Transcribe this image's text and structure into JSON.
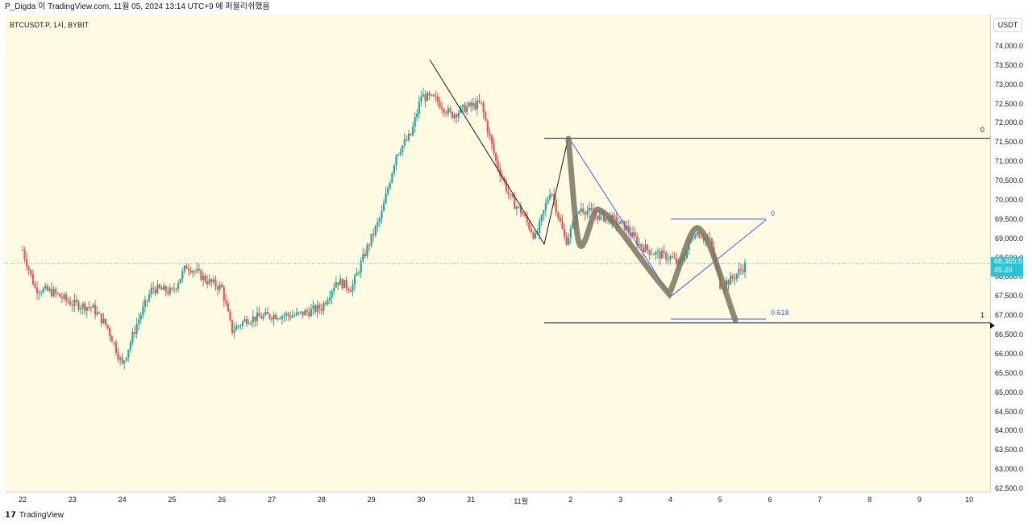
{
  "header": {
    "title": "P_Digda 이 TradingView.com, 11월 05, 2024 13:14 UTC+9 에 퍼블리쉬했음"
  },
  "symbol": {
    "label": "BTCUSDT.P, 1시, BYBIT"
  },
  "price_axis": {
    "currency": "USDT"
  },
  "footer": {
    "brand": "TradingView"
  },
  "last_price": {
    "value": "68,365.5",
    "countdown": "45:20"
  },
  "fib": {
    "label_top_right": "0",
    "label_bottom_right": "1",
    "label_inner_top": "0",
    "label_inner_mid": "0.618"
  },
  "colors": {
    "up": "#26a69a",
    "down": "#ef5350",
    "background": "#fffbe3",
    "fib_line": "#131722",
    "blue_line": "#2962ff",
    "highlight": "#7a7462"
  },
  "chart_data": {
    "type": "candlestick",
    "symbol": "BTCUSDT.P",
    "interval": "1시",
    "exchange": "BYBIT",
    "ylim": [
      62500,
      74500
    ],
    "y_ticks": [
      "74,000.0",
      "73,500.0",
      "73,000.0",
      "72,500.0",
      "72,000.0",
      "71,500.0",
      "71,000.0",
      "70,500.0",
      "70,000.0",
      "69,500.0",
      "69,000.0",
      "68,500.0",
      "68,000.0",
      "67,500.0",
      "67,000.0",
      "66,500.0",
      "66,000.0",
      "65,500.0",
      "65,000.0",
      "64,500.0",
      "64,000.0",
      "63,500.0",
      "63,000.0",
      "62,500.0"
    ],
    "x_ticks": [
      "22",
      "23",
      "24",
      "25",
      "26",
      "27",
      "28",
      "29",
      "30",
      "31",
      "11월",
      "2",
      "3",
      "4",
      "5",
      "6",
      "7",
      "8",
      "9",
      "10"
    ],
    "x_tick_values": [
      0,
      1,
      2,
      3,
      4,
      5,
      6,
      7,
      8,
      9,
      10,
      11,
      12,
      13,
      14,
      15,
      16,
      17,
      18,
      19
    ],
    "price_path": [
      [
        0,
        68700
      ],
      [
        0.25,
        67700
      ],
      [
        0.6,
        67600
      ],
      [
        1.0,
        67300
      ],
      [
        1.4,
        67200
      ],
      [
        1.7,
        66700
      ],
      [
        2.0,
        65700
      ],
      [
        2.3,
        66800
      ],
      [
        2.6,
        67700
      ],
      [
        3.0,
        67600
      ],
      [
        3.3,
        68300
      ],
      [
        3.7,
        67900
      ],
      [
        4.0,
        67700
      ],
      [
        4.2,
        66600
      ],
      [
        4.5,
        66900
      ],
      [
        5.0,
        67000
      ],
      [
        5.5,
        67000
      ],
      [
        6.0,
        67200
      ],
      [
        6.3,
        67900
      ],
      [
        6.6,
        67700
      ],
      [
        6.9,
        68700
      ],
      [
        7.2,
        69600
      ],
      [
        7.5,
        71200
      ],
      [
        7.8,
        71700
      ],
      [
        8.0,
        72700
      ],
      [
        8.3,
        72600
      ],
      [
        8.6,
        72200
      ],
      [
        8.9,
        72400
      ],
      [
        9.2,
        72500
      ],
      [
        9.5,
        71000
      ],
      [
        9.8,
        70000
      ],
      [
        10.0,
        69700
      ],
      [
        10.3,
        69000
      ],
      [
        10.6,
        70300
      ],
      [
        10.9,
        68900
      ],
      [
        11.2,
        69800
      ],
      [
        11.5,
        69600
      ],
      [
        11.8,
        69500
      ],
      [
        12.1,
        69300
      ],
      [
        12.4,
        68800
      ],
      [
        12.7,
        68600
      ],
      [
        13.0,
        68500
      ],
      [
        13.2,
        68300
      ],
      [
        13.5,
        69200
      ],
      [
        13.8,
        68900
      ],
      [
        14.0,
        67800
      ],
      [
        14.2,
        67900
      ],
      [
        14.5,
        68300
      ]
    ],
    "fib_levels": [
      {
        "label": "0",
        "price": 71600
      },
      {
        "label": "1",
        "price": 66800
      }
    ],
    "inner_fib_levels": [
      {
        "label": "0",
        "price": 69500
      },
      {
        "label": "0.618",
        "price": 66900
      }
    ],
    "grid": false
  }
}
